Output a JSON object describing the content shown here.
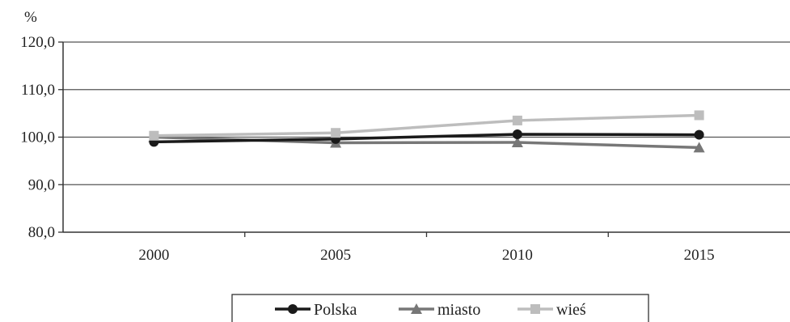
{
  "chart_data": {
    "type": "line",
    "ylabel": "%",
    "categories": [
      "2000",
      "2005",
      "2010",
      "2015"
    ],
    "ylim": [
      80,
      120
    ],
    "yticks": [
      "80,0",
      "90,0",
      "100,0",
      "110,0",
      "120,0"
    ],
    "grid": true,
    "legend_position": "bottom",
    "series": [
      {
        "name": "Polska",
        "values": [
          99.0,
          99.6,
          100.6,
          100.5
        ],
        "color": "#1a1a1a",
        "marker": "circle"
      },
      {
        "name": "miasto",
        "values": [
          100.0,
          98.8,
          98.9,
          97.8
        ],
        "color": "#777777",
        "marker": "triangle"
      },
      {
        "name": "wieś",
        "values": [
          100.3,
          100.9,
          103.5,
          104.6
        ],
        "color": "#bdbdbd",
        "marker": "square"
      }
    ]
  }
}
